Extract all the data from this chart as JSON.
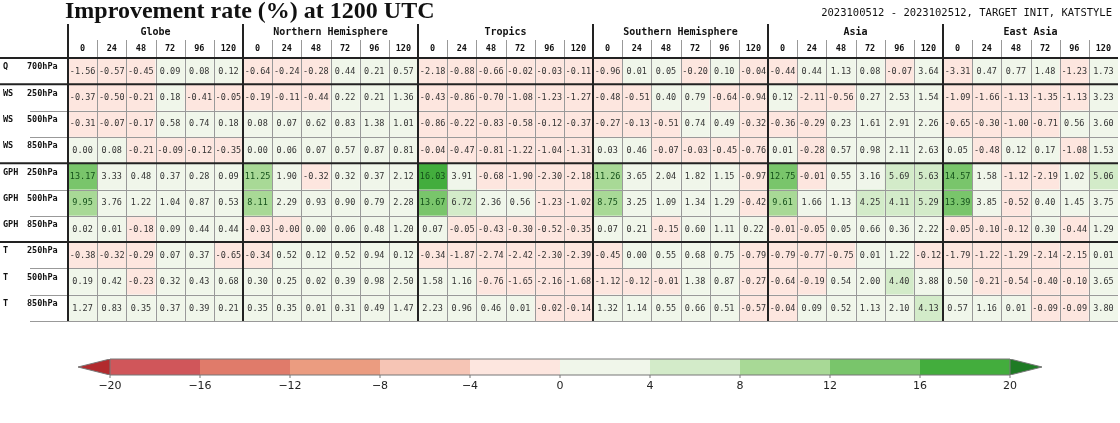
{
  "chart_data": {
    "type": "heatmap",
    "title": "Improvement rate (%) at 1200 UTC",
    "subtitle": "2023100512 - 2023102512, TARGET INIT, KATSTYLE",
    "annotations": [
      "Globe",
      "Northern Hemisphere",
      "Tropics",
      "Southern Hemisphere",
      "Asia",
      "East Asia"
    ],
    "categories": [
      "0",
      "24",
      "48",
      "72",
      "96",
      "120",
      "0",
      "24",
      "48",
      "72",
      "96",
      "120",
      "0",
      "24",
      "48",
      "72",
      "96",
      "120",
      "0",
      "24",
      "48",
      "72",
      "96",
      "120",
      "0",
      "24",
      "48",
      "72",
      "96",
      "120",
      "0",
      "24",
      "48",
      "72",
      "96",
      "120"
    ],
    "y_categories": [
      "Q 700hPa",
      "WS 250hPa",
      "WS 500hPa",
      "WS 850hPa",
      "GPH 250hPa",
      "GPH 500hPa",
      "GPH 850hPa",
      "T 250hPa",
      "T 500hPa",
      "T 850hPa"
    ],
    "cells": [
      [
        -1.56,
        -0.57,
        -0.45,
        0.09,
        0.08,
        0.12,
        -0.64,
        -0.24,
        -0.28,
        0.44,
        0.21,
        0.57,
        -2.18,
        -0.88,
        -0.66,
        -0.02,
        -0.03,
        -0.11,
        -0.96,
        0.01,
        0.05,
        -0.2,
        0.1,
        -0.04,
        -0.44,
        0.44,
        1.13,
        0.08,
        -0.07,
        3.64,
        -3.31,
        0.47,
        0.77,
        1.48,
        -1.23,
        1.73
      ],
      [
        -0.37,
        -0.5,
        -0.21,
        0.18,
        -0.41,
        -0.05,
        -0.19,
        -0.11,
        -0.44,
        0.22,
        0.21,
        1.36,
        -0.43,
        -0.86,
        -0.7,
        -1.08,
        -1.23,
        -1.27,
        -0.48,
        -0.51,
        0.4,
        0.79,
        -0.64,
        -0.94,
        0.12,
        -2.11,
        -0.56,
        0.27,
        2.53,
        1.54,
        -1.09,
        -1.66,
        -1.13,
        -1.35,
        -1.13,
        3.23
      ],
      [
        -0.31,
        -0.07,
        -0.17,
        0.58,
        0.74,
        0.18,
        0.08,
        0.07,
        0.62,
        0.83,
        1.38,
        1.01,
        -0.86,
        -0.22,
        -0.83,
        -0.58,
        -0.12,
        -0.37,
        -0.27,
        -0.13,
        -0.51,
        0.74,
        0.49,
        -0.32,
        -0.36,
        -0.29,
        0.23,
        1.61,
        2.91,
        2.26,
        -0.65,
        -0.3,
        -1.0,
        -0.71,
        0.56,
        3.6
      ],
      [
        0.0,
        0.08,
        -0.21,
        -0.09,
        -0.12,
        -0.35,
        0.0,
        0.06,
        0.07,
        0.57,
        0.87,
        0.81,
        -0.04,
        -0.47,
        -0.81,
        -1.22,
        -1.04,
        -1.31,
        0.03,
        0.46,
        -0.07,
        -0.03,
        -0.45,
        -0.76,
        0.01,
        -0.28,
        0.57,
        0.98,
        2.11,
        2.63,
        0.05,
        -0.48,
        0.12,
        0.17,
        -1.08,
        1.53
      ],
      [
        13.17,
        3.33,
        0.48,
        0.37,
        0.28,
        0.09,
        11.25,
        1.9,
        -0.32,
        0.32,
        0.37,
        2.12,
        16.03,
        3.91,
        -0.68,
        -1.9,
        -2.3,
        -2.18,
        11.26,
        3.65,
        2.04,
        1.82,
        1.15,
        -0.97,
        12.75,
        -0.01,
        0.55,
        3.16,
        5.69,
        5.63,
        14.57,
        1.58,
        -1.12,
        -2.19,
        1.02,
        5.06
      ],
      [
        9.95,
        3.76,
        1.22,
        1.04,
        0.87,
        0.53,
        8.11,
        2.29,
        0.93,
        0.9,
        0.79,
        2.28,
        13.67,
        6.72,
        2.36,
        0.56,
        -1.23,
        -1.02,
        8.75,
        3.25,
        1.09,
        1.34,
        1.29,
        -0.42,
        9.61,
        1.66,
        1.13,
        4.25,
        4.11,
        5.29,
        13.39,
        3.85,
        -0.52,
        0.4,
        1.45,
        3.75
      ],
      [
        0.02,
        0.01,
        -0.18,
        0.09,
        0.44,
        0.44,
        -0.03,
        -0.0,
        0.0,
        0.06,
        0.48,
        1.2,
        0.07,
        -0.05,
        -0.43,
        -0.3,
        -0.52,
        -0.35,
        0.07,
        0.21,
        -0.15,
        0.6,
        1.11,
        0.22,
        -0.01,
        -0.05,
        0.05,
        0.66,
        0.36,
        2.22,
        -0.05,
        -0.1,
        -0.12,
        0.3,
        -0.44,
        1.29
      ],
      [
        -0.38,
        -0.32,
        -0.29,
        0.07,
        0.37,
        -0.65,
        -0.34,
        0.52,
        0.12,
        0.52,
        0.94,
        0.12,
        -0.34,
        -1.87,
        -2.74,
        -2.42,
        -2.3,
        -2.39,
        -0.45,
        0.0,
        0.55,
        0.68,
        0.75,
        -0.79,
        -0.79,
        -0.77,
        -0.75,
        0.01,
        1.22,
        -0.12,
        -1.79,
        -1.22,
        -1.29,
        -2.14,
        -2.15,
        0.01
      ],
      [
        0.19,
        0.42,
        -0.23,
        0.32,
        0.43,
        0.68,
        0.3,
        0.25,
        0.02,
        0.39,
        0.98,
        2.5,
        1.58,
        1.16,
        -0.76,
        -1.65,
        -2.16,
        -1.68,
        -1.12,
        -0.12,
        -0.01,
        1.38,
        0.87,
        -0.27,
        -0.64,
        -0.19,
        0.54,
        2.0,
        4.4,
        3.88,
        0.5,
        -0.21,
        -0.54,
        -0.4,
        -0.1,
        3.65
      ],
      [
        1.27,
        0.83,
        0.35,
        0.37,
        0.39,
        0.21,
        0.35,
        0.35,
        0.01,
        0.31,
        0.49,
        1.47,
        2.23,
        0.96,
        0.46,
        0.01,
        -0.02,
        -0.14,
        1.32,
        1.14,
        0.55,
        0.66,
        0.51,
        -0.57,
        -0.04,
        0.09,
        0.52,
        1.13,
        2.1,
        4.13,
        0.57,
        1.16,
        0.01,
        -0.09,
        -0.09,
        3.8
      ]
    ],
    "cell_labels": [
      [
        "-1.56",
        "-0.57",
        "-0.45",
        "0.09",
        "0.08",
        "0.12",
        "-0.64",
        "-0.24",
        "-0.28",
        "0.44",
        "0.21",
        "0.57",
        "-2.18",
        "-0.88",
        "-0.66",
        "-0.02",
        "-0.03",
        "-0.11",
        "-0.96",
        "0.01",
        "0.05",
        "-0.20",
        "0.10",
        "-0.04",
        "-0.44",
        "0.44",
        "1.13",
        "0.08",
        "-0.07",
        "3.64",
        "-3.31",
        "0.47",
        "0.77",
        "1.48",
        "-1.23",
        "1.73"
      ],
      [
        "-0.37",
        "-0.50",
        "-0.21",
        "0.18",
        "-0.41",
        "-0.05",
        "-0.19",
        "-0.11",
        "-0.44",
        "0.22",
        "0.21",
        "1.36",
        "-0.43",
        "-0.86",
        "-0.70",
        "-1.08",
        "-1.23",
        "-1.27",
        "-0.48",
        "-0.51",
        "0.40",
        "0.79",
        "-0.64",
        "-0.94",
        "0.12",
        "-2.11",
        "-0.56",
        "0.27",
        "2.53",
        "1.54",
        "-1.09",
        "-1.66",
        "-1.13",
        "-1.35",
        "-1.13",
        "3.23"
      ],
      [
        "-0.31",
        "-0.07",
        "-0.17",
        "0.58",
        "0.74",
        "0.18",
        "0.08",
        "0.07",
        "0.62",
        "0.83",
        "1.38",
        "1.01",
        "-0.86",
        "-0.22",
        "-0.83",
        "-0.58",
        "-0.12",
        "-0.37",
        "-0.27",
        "-0.13",
        "-0.51",
        "0.74",
        "0.49",
        "-0.32",
        "-0.36",
        "-0.29",
        "0.23",
        "1.61",
        "2.91",
        "2.26",
        "-0.65",
        "-0.30",
        "-1.00",
        "-0.71",
        "0.56",
        "3.60"
      ],
      [
        "0.00",
        "0.08",
        "-0.21",
        "-0.09",
        "-0.12",
        "-0.35",
        "0.00",
        "0.06",
        "0.07",
        "0.57",
        "0.87",
        "0.81",
        "-0.04",
        "-0.47",
        "-0.81",
        "-1.22",
        "-1.04",
        "-1.31",
        "0.03",
        "0.46",
        "-0.07",
        "-0.03",
        "-0.45",
        "-0.76",
        "0.01",
        "-0.28",
        "0.57",
        "0.98",
        "2.11",
        "2.63",
        "0.05",
        "-0.48",
        "0.12",
        "0.17",
        "-1.08",
        "1.53"
      ],
      [
        "13.17",
        "3.33",
        "0.48",
        "0.37",
        "0.28",
        "0.09",
        "11.25",
        "1.90",
        "-0.32",
        "0.32",
        "0.37",
        "2.12",
        "16.03",
        "3.91",
        "-0.68",
        "-1.90",
        "-2.30",
        "-2.18",
        "11.26",
        "3.65",
        "2.04",
        "1.82",
        "1.15",
        "-0.97",
        "12.75",
        "-0.01",
        "0.55",
        "3.16",
        "5.69",
        "5.63",
        "14.57",
        "1.58",
        "-1.12",
        "-2.19",
        "1.02",
        "5.06"
      ],
      [
        "9.95",
        "3.76",
        "1.22",
        "1.04",
        "0.87",
        "0.53",
        "8.11",
        "2.29",
        "0.93",
        "0.90",
        "0.79",
        "2.28",
        "13.67",
        "6.72",
        "2.36",
        "0.56",
        "-1.23",
        "-1.02",
        "8.75",
        "3.25",
        "1.09",
        "1.34",
        "1.29",
        "-0.42",
        "9.61",
        "1.66",
        "1.13",
        "4.25",
        "4.11",
        "5.29",
        "13.39",
        "3.85",
        "-0.52",
        "0.40",
        "1.45",
        "3.75"
      ],
      [
        "0.02",
        "0.01",
        "-0.18",
        "0.09",
        "0.44",
        "0.44",
        "-0.03",
        "-0.00",
        "0.00",
        "0.06",
        "0.48",
        "1.20",
        "0.07",
        "-0.05",
        "-0.43",
        "-0.30",
        "-0.52",
        "-0.35",
        "0.07",
        "0.21",
        "-0.15",
        "0.60",
        "1.11",
        "0.22",
        "-0.01",
        "-0.05",
        "0.05",
        "0.66",
        "0.36",
        "2.22",
        "-0.05",
        "-0.10",
        "-0.12",
        "0.30",
        "-0.44",
        "1.29"
      ],
      [
        "-0.38",
        "-0.32",
        "-0.29",
        "0.07",
        "0.37",
        "-0.65",
        "-0.34",
        "0.52",
        "0.12",
        "0.52",
        "0.94",
        "0.12",
        "-0.34",
        "-1.87",
        "-2.74",
        "-2.42",
        "-2.30",
        "-2.39",
        "-0.45",
        "0.00",
        "0.55",
        "0.68",
        "0.75",
        "-0.79",
        "-0.79",
        "-0.77",
        "-0.75",
        "0.01",
        "1.22",
        "-0.12",
        "-1.79",
        "-1.22",
        "-1.29",
        "-2.14",
        "-2.15",
        "0.01"
      ],
      [
        "0.19",
        "0.42",
        "-0.23",
        "0.32",
        "0.43",
        "0.68",
        "0.30",
        "0.25",
        "0.02",
        "0.39",
        "0.98",
        "2.50",
        "1.58",
        "1.16",
        "-0.76",
        "-1.65",
        "-2.16",
        "-1.68",
        "-1.12",
        "-0.12",
        "-0.01",
        "1.38",
        "0.87",
        "-0.27",
        "-0.64",
        "-0.19",
        "0.54",
        "2.00",
        "4.40",
        "3.88",
        "0.50",
        "-0.21",
        "-0.54",
        "-0.40",
        "-0.10",
        "3.65"
      ],
      [
        "1.27",
        "0.83",
        "0.35",
        "0.37",
        "0.39",
        "0.21",
        "0.35",
        "0.35",
        "0.01",
        "0.31",
        "0.49",
        "1.47",
        "2.23",
        "0.96",
        "0.46",
        "0.01",
        "-0.02",
        "-0.14",
        "1.32",
        "1.14",
        "0.55",
        "0.66",
        "0.51",
        "-0.57",
        "-0.04",
        "0.09",
        "0.52",
        "1.13",
        "2.10",
        "4.13",
        "0.57",
        "1.16",
        "0.01",
        "-0.09",
        "-0.09",
        "3.80"
      ]
    ],
    "data_labels": true,
    "clim": [
      -20,
      20
    ],
    "cticks": [
      -20,
      -16,
      -12,
      -8,
      -4,
      0,
      4,
      8,
      12,
      16,
      20
    ]
  }
}
